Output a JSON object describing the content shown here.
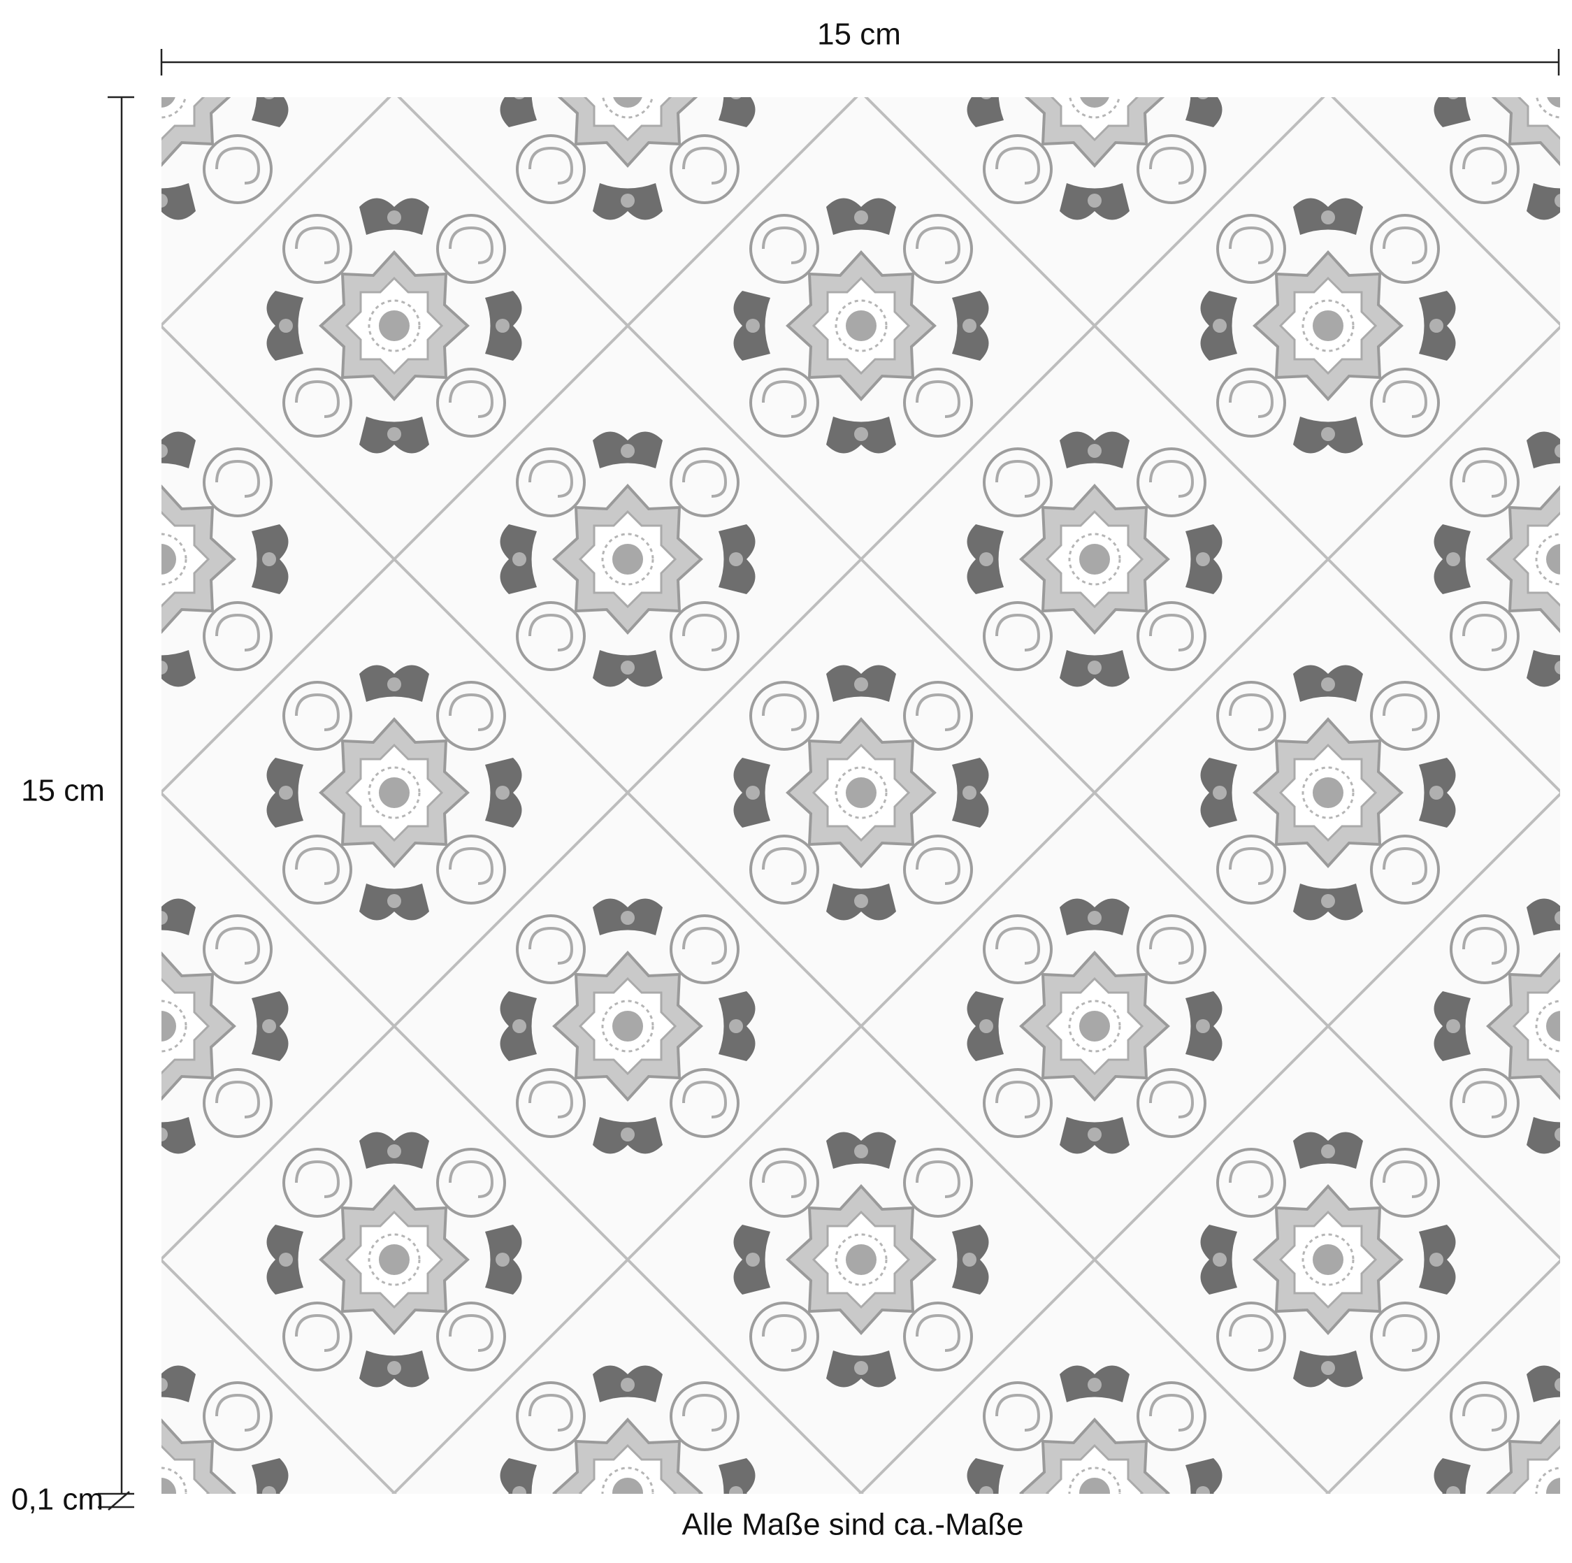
{
  "dimensions": {
    "width": "15 cm",
    "height": "15 cm",
    "thickness": "0,1 cm"
  },
  "note": "Alle Maße sind ca.-Maße"
}
